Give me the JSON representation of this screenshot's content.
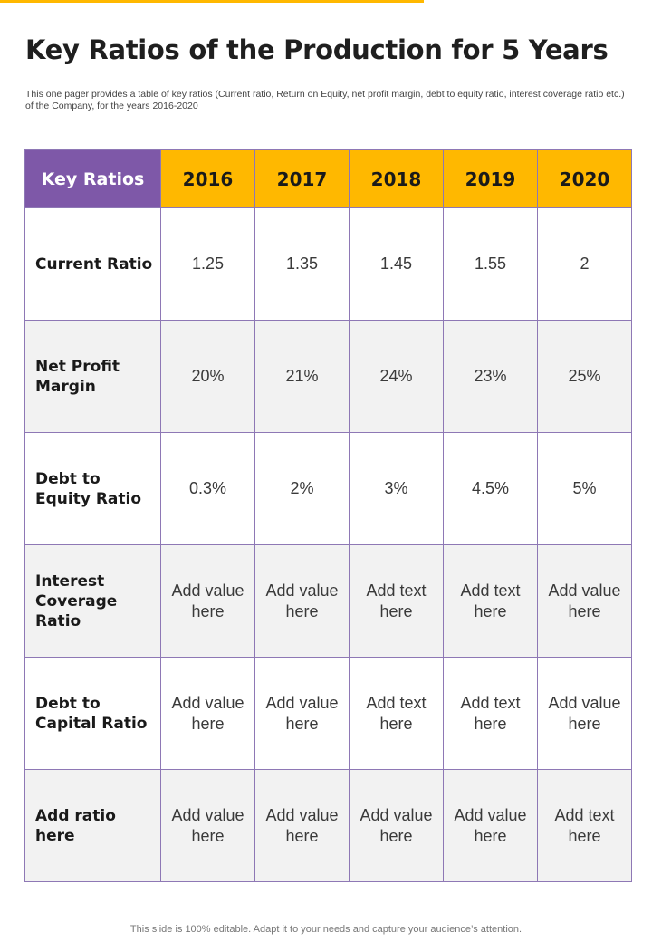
{
  "accent_color": "#FFB800",
  "header_purple": "#7E58A8",
  "title": "Key Ratios of the Production for 5 Years",
  "subtitle": "This one pager provides a table of key ratios (Current ratio, Return on Equity, net profit margin, debt to equity ratio, interest coverage ratio etc.) of the Company, for the years 2016-2020",
  "table": {
    "headers": [
      "Key Ratios",
      "2016",
      "2017",
      "2018",
      "2019",
      "2020"
    ],
    "rows": [
      {
        "label": "Current Ratio",
        "values": [
          "1.25",
          "1.35",
          "1.45",
          "1.55",
          "2"
        ]
      },
      {
        "label": "Net Profit Margin",
        "values": [
          "20%",
          "21%",
          "24%",
          "23%",
          "25%"
        ]
      },
      {
        "label": "Debt to Equity Ratio",
        "values": [
          "0.3%",
          "2%",
          "3%",
          "4.5%",
          "5%"
        ]
      },
      {
        "label": "Interest Coverage Ratio",
        "values": [
          "Add value here",
          "Add value here",
          "Add text here",
          "Add text here",
          "Add value here"
        ]
      },
      {
        "label": "Debt to Capital Ratio",
        "values": [
          "Add value here",
          "Add value here",
          "Add text here",
          "Add text here",
          "Add value here"
        ]
      },
      {
        "label": "Add ratio here",
        "values": [
          "Add value here",
          "Add value here",
          "Add value here",
          "Add value here",
          "Add text here"
        ]
      }
    ]
  },
  "footer": "This slide is 100% editable. Adapt it to your needs and capture your audience’s attention."
}
